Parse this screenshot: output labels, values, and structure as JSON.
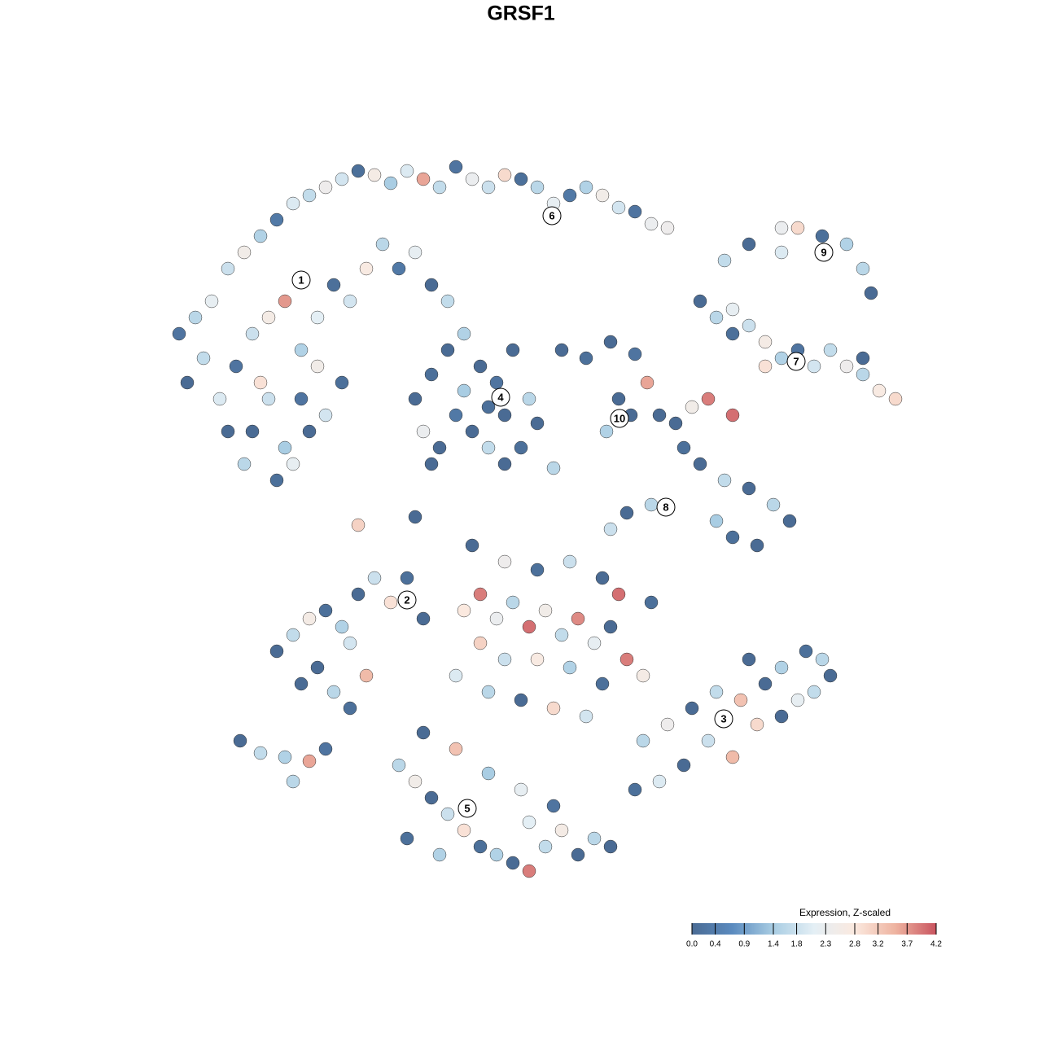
{
  "chart_data": {
    "type": "scatter",
    "title": "GRSF1",
    "xlim": [
      0,
      930
    ],
    "ylim": [
      0,
      905
    ],
    "points": [
      [
        20,
        680,
        0.2
      ],
      [
        40,
        700,
        1.6
      ],
      [
        60,
        720,
        2.2
      ],
      [
        80,
        760,
        1.8
      ],
      [
        100,
        780,
        2.5
      ],
      [
        120,
        800,
        1.5
      ],
      [
        140,
        820,
        0.3
      ],
      [
        160,
        840,
        2.0
      ],
      [
        180,
        850,
        1.7
      ],
      [
        200,
        860,
        2.4
      ],
      [
        220,
        870,
        1.9
      ],
      [
        240,
        880,
        0.1
      ],
      [
        260,
        875,
        2.6
      ],
      [
        280,
        865,
        1.4
      ],
      [
        300,
        880,
        2.0
      ],
      [
        320,
        870,
        3.6
      ],
      [
        340,
        860,
        1.7
      ],
      [
        360,
        885,
        0.2
      ],
      [
        380,
        870,
        2.3
      ],
      [
        400,
        860,
        1.8
      ],
      [
        420,
        875,
        3.0
      ],
      [
        440,
        870,
        0.1
      ],
      [
        460,
        860,
        1.6
      ],
      [
        480,
        840,
        2.2
      ],
      [
        500,
        850,
        0.3
      ],
      [
        520,
        860,
        1.5
      ],
      [
        540,
        850,
        2.5
      ],
      [
        560,
        835,
        1.9
      ],
      [
        580,
        830,
        0.2
      ],
      [
        600,
        815,
        2.3
      ],
      [
        620,
        810,
        2.4
      ],
      [
        30,
        620,
        0.0
      ],
      [
        50,
        650,
        1.7
      ],
      [
        70,
        600,
        2.0
      ],
      [
        90,
        640,
        0.2
      ],
      [
        110,
        680,
        1.8
      ],
      [
        130,
        700,
        2.6
      ],
      [
        150,
        720,
        3.7
      ],
      [
        170,
        660,
        1.5
      ],
      [
        190,
        700,
        2.1
      ],
      [
        210,
        740,
        0.1
      ],
      [
        230,
        720,
        1.9
      ],
      [
        250,
        760,
        2.7
      ],
      [
        270,
        790,
        1.6
      ],
      [
        290,
        760,
        0.3
      ],
      [
        310,
        780,
        2.2
      ],
      [
        330,
        740,
        0.0
      ],
      [
        350,
        720,
        1.7
      ],
      [
        190,
        640,
        2.5
      ],
      [
        170,
        600,
        0.2
      ],
      [
        130,
        600,
        1.8
      ],
      [
        110,
        560,
        0.0
      ],
      [
        150,
        540,
        1.4
      ],
      [
        140,
        500,
        0.1
      ],
      [
        160,
        520,
        2.2
      ],
      [
        180,
        560,
        0.0
      ],
      [
        200,
        580,
        1.9
      ],
      [
        220,
        620,
        0.1
      ],
      [
        120,
        620,
        2.9
      ],
      [
        80,
        560,
        0.0
      ],
      [
        100,
        520,
        1.6
      ],
      [
        310,
        600,
        0.0
      ],
      [
        330,
        630,
        0.1
      ],
      [
        350,
        660,
        0.0
      ],
      [
        370,
        680,
        1.5
      ],
      [
        390,
        640,
        0.0
      ],
      [
        410,
        620,
        0.2
      ],
      [
        430,
        660,
        0.0
      ],
      [
        450,
        600,
        1.6
      ],
      [
        460,
        570,
        0.0
      ],
      [
        440,
        540,
        0.1
      ],
      [
        420,
        520,
        0.0
      ],
      [
        400,
        540,
        1.7
      ],
      [
        380,
        560,
        0.0
      ],
      [
        360,
        580,
        0.3
      ],
      [
        340,
        540,
        0.0
      ],
      [
        320,
        560,
        2.3
      ],
      [
        330,
        520,
        0.0
      ],
      [
        370,
        610,
        1.4
      ],
      [
        420,
        580,
        0.0
      ],
      [
        400,
        590,
        0.1
      ],
      [
        490,
        660,
        0.0
      ],
      [
        520,
        650,
        0.1
      ],
      [
        550,
        670,
        0.0
      ],
      [
        580,
        655,
        0.2
      ],
      [
        560,
        600,
        0.0
      ],
      [
        545,
        560,
        1.5
      ],
      [
        575,
        580,
        0.0
      ],
      [
        595,
        620,
        3.6
      ],
      [
        610,
        580,
        0.0
      ],
      [
        660,
        720,
        0.0
      ],
      [
        680,
        700,
        1.6
      ],
      [
        700,
        710,
        2.2
      ],
      [
        720,
        690,
        1.8
      ],
      [
        740,
        670,
        2.6
      ],
      [
        760,
        650,
        1.5
      ],
      [
        780,
        660,
        0.2
      ],
      [
        800,
        640,
        1.9
      ],
      [
        820,
        660,
        1.7
      ],
      [
        840,
        640,
        2.4
      ],
      [
        860,
        630,
        1.6
      ],
      [
        880,
        610,
        2.7
      ],
      [
        900,
        600,
        3.0
      ],
      [
        860,
        650,
        0.0
      ],
      [
        740,
        640,
        2.9
      ],
      [
        700,
        680,
        0.1
      ],
      [
        690,
        770,
        1.7
      ],
      [
        720,
        790,
        0.0
      ],
      [
        760,
        780,
        2.0
      ],
      [
        780,
        810,
        3.0
      ],
      [
        810,
        800,
        0.1
      ],
      [
        840,
        790,
        1.5
      ],
      [
        860,
        760,
        1.6
      ],
      [
        870,
        730,
        0.0
      ],
      [
        760,
        810,
        2.3
      ],
      [
        630,
        570,
        0.0
      ],
      [
        650,
        590,
        2.5
      ],
      [
        670,
        600,
        3.9
      ],
      [
        700,
        580,
        4.0
      ],
      [
        640,
        540,
        0.1
      ],
      [
        660,
        520,
        0.0
      ],
      [
        690,
        500,
        1.7
      ],
      [
        720,
        490,
        0.0
      ],
      [
        750,
        470,
        1.6
      ],
      [
        770,
        450,
        0.0
      ],
      [
        700,
        430,
        0.1
      ],
      [
        730,
        420,
        0.0
      ],
      [
        680,
        450,
        1.4
      ],
      [
        600,
        470,
        1.6
      ],
      [
        570,
        460,
        0.0
      ],
      [
        550,
        440,
        1.8
      ],
      [
        140,
        290,
        0.0
      ],
      [
        160,
        310,
        1.7
      ],
      [
        180,
        330,
        2.6
      ],
      [
        200,
        340,
        0.1
      ],
      [
        220,
        320,
        1.5
      ],
      [
        240,
        360,
        0.0
      ],
      [
        260,
        380,
        1.8
      ],
      [
        280,
        350,
        2.9
      ],
      [
        300,
        380,
        0.1
      ],
      [
        320,
        330,
        0.0
      ],
      [
        190,
        270,
        0.0
      ],
      [
        210,
        240,
        1.6
      ],
      [
        230,
        220,
        0.1
      ],
      [
        250,
        260,
        3.4
      ],
      [
        170,
        250,
        0.0
      ],
      [
        230,
        300,
        1.9
      ],
      [
        95,
        180,
        0.0
      ],
      [
        120,
        165,
        1.7
      ],
      [
        150,
        160,
        1.5
      ],
      [
        180,
        155,
        3.6
      ],
      [
        200,
        170,
        0.2
      ],
      [
        160,
        130,
        1.6
      ],
      [
        370,
        340,
        2.8
      ],
      [
        390,
        360,
        3.9
      ],
      [
        410,
        330,
        2.3
      ],
      [
        430,
        350,
        1.6
      ],
      [
        450,
        320,
        4.0
      ],
      [
        470,
        340,
        2.5
      ],
      [
        490,
        310,
        1.7
      ],
      [
        510,
        330,
        3.8
      ],
      [
        530,
        300,
        2.2
      ],
      [
        550,
        320,
        0.0
      ],
      [
        570,
        280,
        3.9
      ],
      [
        590,
        260,
        2.6
      ],
      [
        390,
        300,
        3.1
      ],
      [
        420,
        280,
        1.8
      ],
      [
        460,
        280,
        2.7
      ],
      [
        500,
        270,
        1.5
      ],
      [
        540,
        250,
        0.1
      ],
      [
        360,
        260,
        2.0
      ],
      [
        400,
        240,
        1.6
      ],
      [
        440,
        230,
        0.0
      ],
      [
        480,
        220,
        3.0
      ],
      [
        520,
        210,
        1.9
      ],
      [
        380,
        420,
        0.0
      ],
      [
        420,
        400,
        2.4
      ],
      [
        460,
        390,
        0.1
      ],
      [
        500,
        400,
        1.8
      ],
      [
        540,
        380,
        0.0
      ],
      [
        560,
        360,
        4.0
      ],
      [
        600,
        350,
        0.1
      ],
      [
        590,
        180,
        1.6
      ],
      [
        620,
        200,
        2.4
      ],
      [
        650,
        220,
        0.0
      ],
      [
        680,
        240,
        1.7
      ],
      [
        710,
        230,
        3.3
      ],
      [
        740,
        250,
        0.0
      ],
      [
        760,
        270,
        1.5
      ],
      [
        790,
        290,
        0.1
      ],
      [
        810,
        280,
        1.6
      ],
      [
        820,
        260,
        0.0
      ],
      [
        780,
        230,
        2.2
      ],
      [
        730,
        200,
        3.0
      ],
      [
        700,
        160,
        3.4
      ],
      [
        670,
        180,
        1.8
      ],
      [
        640,
        150,
        0.0
      ],
      [
        610,
        130,
        2.0
      ],
      [
        580,
        120,
        0.1
      ],
      [
        760,
        210,
        0.0
      ],
      [
        800,
        240,
        1.7
      ],
      [
        720,
        280,
        0.0
      ],
      [
        290,
        150,
        1.6
      ],
      [
        310,
        130,
        2.5
      ],
      [
        330,
        110,
        0.0
      ],
      [
        350,
        90,
        1.8
      ],
      [
        370,
        70,
        2.9
      ],
      [
        390,
        50,
        0.1
      ],
      [
        410,
        40,
        1.5
      ],
      [
        430,
        30,
        0.0
      ],
      [
        450,
        20,
        3.9
      ],
      [
        470,
        50,
        1.7
      ],
      [
        490,
        70,
        2.6
      ],
      [
        510,
        40,
        0.0
      ],
      [
        530,
        60,
        1.6
      ],
      [
        550,
        50,
        0.0
      ],
      [
        480,
        100,
        0.2
      ],
      [
        440,
        120,
        2.2
      ],
      [
        400,
        140,
        1.4
      ],
      [
        360,
        170,
        3.3
      ],
      [
        320,
        190,
        0.0
      ],
      [
        300,
        60,
        0.1
      ],
      [
        340,
        40,
        1.5
      ],
      [
        450,
        80,
        2.1
      ],
      [
        240,
        445,
        3.1
      ],
      [
        310,
        455,
        0.0
      ],
      [
        480,
        515,
        1.6
      ]
    ],
    "clusters": {
      "labels": [
        "1",
        "2",
        "3",
        "4",
        "5",
        "6",
        "7",
        "8",
        "9",
        "10"
      ],
      "x": [
        170,
        300,
        689,
        415,
        374,
        478,
        778,
        618,
        812,
        561
      ],
      "y": [
        746,
        353,
        207,
        602,
        97,
        825,
        646,
        467,
        780,
        576
      ]
    },
    "colorbar": {
      "title": "Expression, Z-scaled",
      "lim": [
        0,
        4.2
      ],
      "ticks": [
        {
          "value": 0,
          "label": "0.0"
        },
        0.4,
        0.9,
        1.4,
        1.8,
        2.3,
        2.8,
        3.2,
        3.7,
        4.2
      ],
      "colors": [
        "#4a6b94",
        "#5b8bbf",
        "#a9cde3",
        "#e4eff5",
        "#fbe9df",
        "#eeb3a0",
        "#c9545f"
      ]
    }
  }
}
